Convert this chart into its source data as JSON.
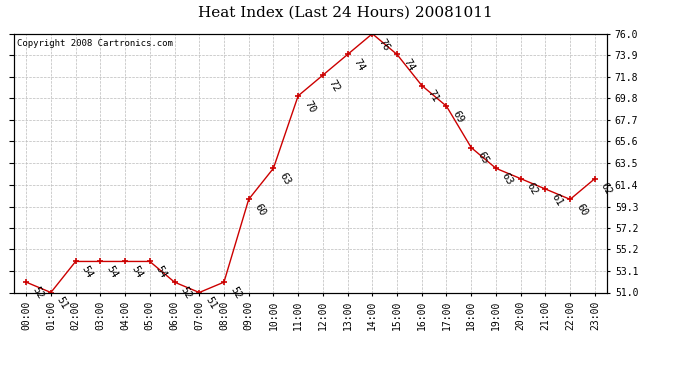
{
  "title": "Heat Index (Last 24 Hours) 20081011",
  "copyright": "Copyright 2008 Cartronics.com",
  "hours": [
    "00:00",
    "01:00",
    "02:00",
    "03:00",
    "04:00",
    "05:00",
    "06:00",
    "07:00",
    "08:00",
    "09:00",
    "10:00",
    "11:00",
    "12:00",
    "13:00",
    "14:00",
    "15:00",
    "16:00",
    "17:00",
    "18:00",
    "19:00",
    "20:00",
    "21:00",
    "22:00",
    "23:00"
  ],
  "values": [
    52,
    51,
    54,
    54,
    54,
    54,
    52,
    51,
    52,
    60,
    63,
    70,
    72,
    74,
    76,
    74,
    71,
    69,
    65,
    63,
    62,
    61,
    60,
    62
  ],
  "ylim": [
    51.0,
    76.0
  ],
  "yticks": [
    51.0,
    53.1,
    55.2,
    57.2,
    59.3,
    61.4,
    63.5,
    65.6,
    67.7,
    69.8,
    71.8,
    73.9,
    76.0
  ],
  "line_color": "#cc0000",
  "marker_color": "#cc0000",
  "grid_color": "#bbbbbb",
  "bg_color": "#ffffff",
  "title_fontsize": 11,
  "label_fontsize": 7,
  "annotation_fontsize": 7.5
}
